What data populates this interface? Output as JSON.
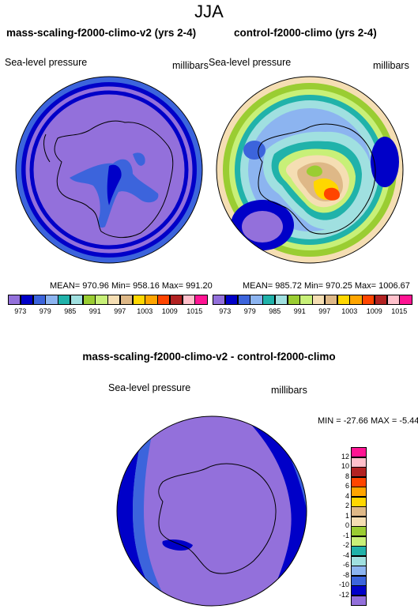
{
  "season": "JJA",
  "panels": [
    {
      "title": "mass-scaling-f2000-climo-v2 (yrs 2-4)",
      "variable": "Sea-level pressure",
      "units": "millibars",
      "stats": "MEAN= 970.96  Min= 958.16  Max= 991.20"
    },
    {
      "title": "control-f2000-climo (yrs 2-4)",
      "variable": "Sea-level pressure",
      "units": "millibars",
      "stats": "MEAN= 985.72  Min= 970.25  Max= 1006.67"
    },
    {
      "title": "mass-scaling-f2000-climo-v2 - control-f2000-climo",
      "variable": "Sea-level pressure",
      "units": "millibars",
      "stats": "MIN = -27.66 MAX =  -5.44"
    }
  ],
  "colorbar_abs": {
    "colors": [
      "#9370db",
      "#0000c8",
      "#3c64dc",
      "#8cb4f0",
      "#20b2aa",
      "#a0e0e0",
      "#9acd32",
      "#c8f078",
      "#f5deb3",
      "#deb887",
      "#ffd700",
      "#ffa500",
      "#ff4500",
      "#b22222",
      "#ffc0cb",
      "#ff1493"
    ],
    "labels": [
      "973",
      "979",
      "985",
      "991",
      "997",
      "1003",
      "1009",
      "1015"
    ]
  },
  "colorbar_diff": {
    "colors": [
      "#ff1493",
      "#ffc0cb",
      "#b22222",
      "#ff4500",
      "#ffa500",
      "#ffd700",
      "#deb887",
      "#f5deb3",
      "#9acd32",
      "#c8f078",
      "#20b2aa",
      "#a0e0e0",
      "#8cb4f0",
      "#3c64dc",
      "#0000c8",
      "#9370db"
    ],
    "labels": [
      "12",
      "10",
      "8",
      "6",
      "4",
      "2",
      "1",
      "0",
      "-1",
      "-2",
      "-4",
      "-6",
      "-8",
      "-10",
      "-12"
    ]
  }
}
